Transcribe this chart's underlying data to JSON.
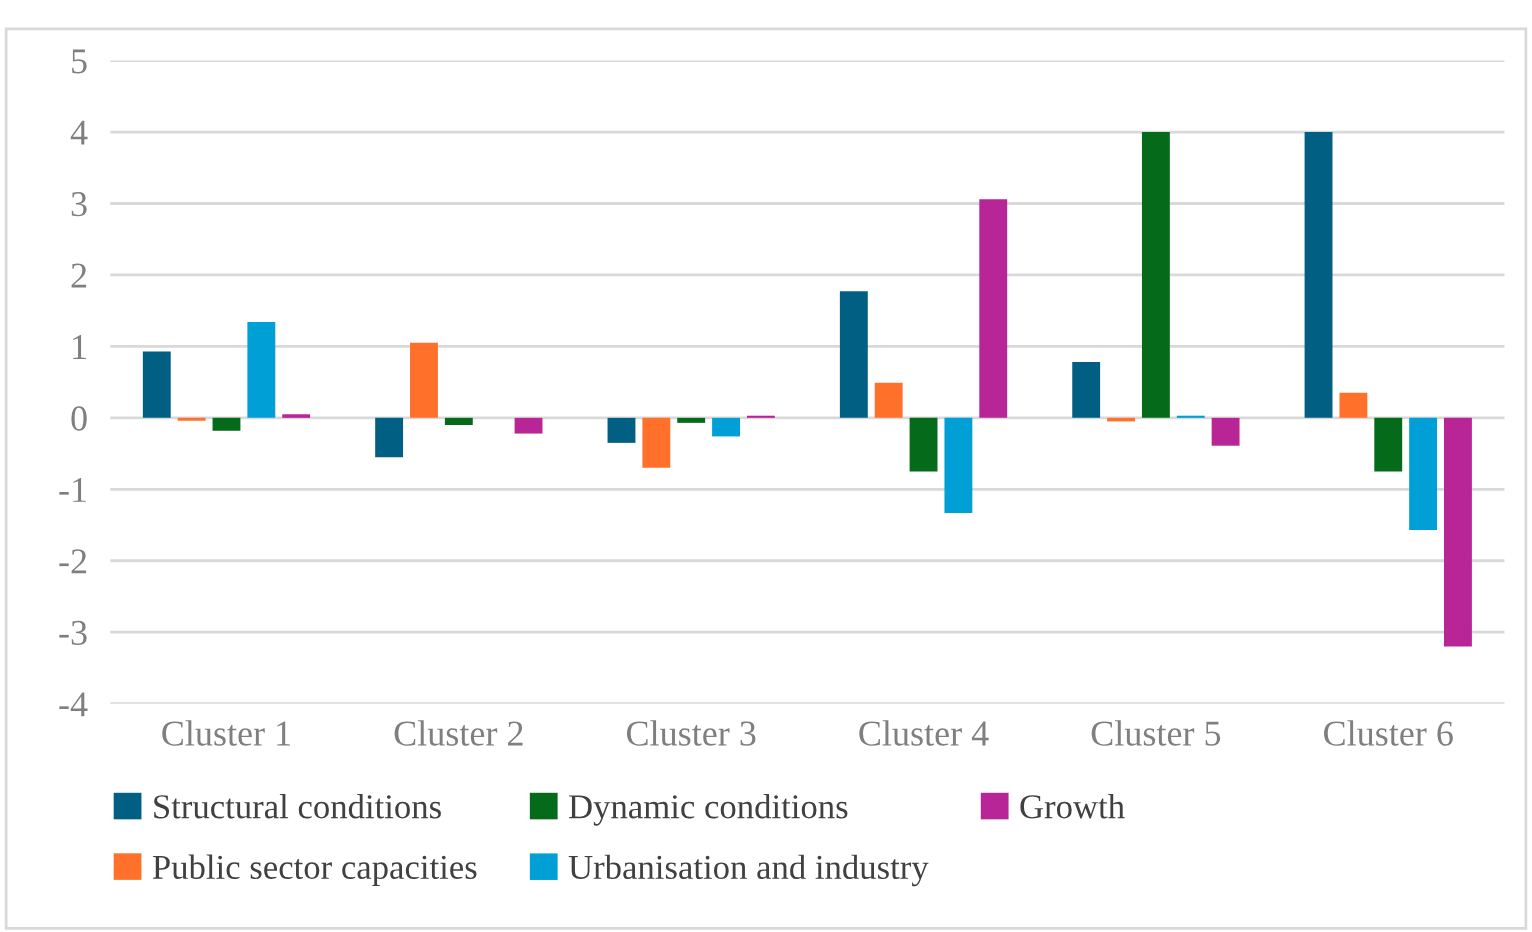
{
  "chart_data": {
    "type": "bar",
    "categories": [
      "Cluster 1",
      "Cluster 2",
      "Cluster 3",
      "Cluster 4",
      "Cluster 5",
      "Cluster 6"
    ],
    "series": [
      {
        "name": "Structural conditions",
        "color": "#005f83",
        "values": [
          0.93,
          -0.55,
          -0.35,
          1.77,
          0.78,
          4.0
        ]
      },
      {
        "name": "Public sector capacities",
        "color": "#ff712b",
        "values": [
          -0.04,
          1.05,
          -0.7,
          0.49,
          -0.05,
          0.35
        ]
      },
      {
        "name": "Dynamic conditions",
        "color": "#056a19",
        "values": [
          -0.18,
          -0.1,
          -0.07,
          -0.75,
          4.0,
          -0.75
        ]
      },
      {
        "name": "Urbanisation and industry",
        "color": "#00a0d6",
        "values": [
          1.34,
          null,
          -0.26,
          -1.33,
          0.03,
          -1.57
        ]
      },
      {
        "name": "Growth",
        "color": "#b82596",
        "values": [
          0.05,
          -0.22,
          0.03,
          3.06,
          -0.39,
          -3.2
        ]
      }
    ],
    "ylim": [
      -4,
      5
    ],
    "yticks": [
      -4,
      -3,
      -2,
      -1,
      0,
      1,
      2,
      3,
      4,
      5
    ],
    "grid": "y",
    "legend": "bottom"
  }
}
